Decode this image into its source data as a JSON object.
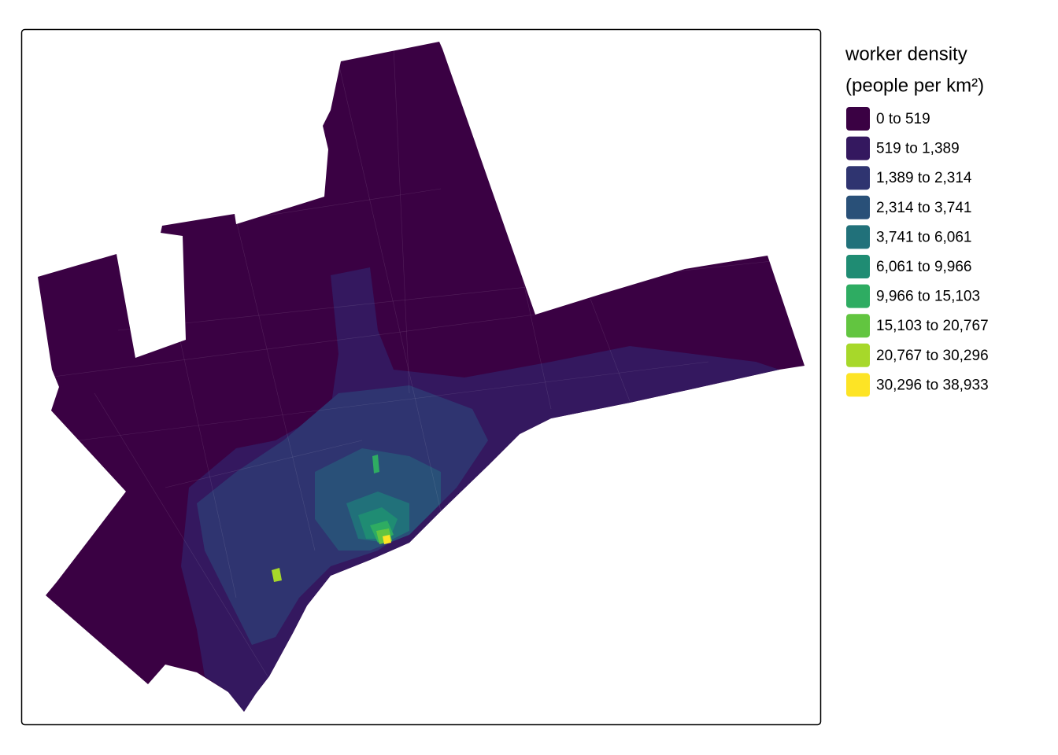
{
  "legend": {
    "title": [
      "worker density",
      "(people per km²)"
    ],
    "items": [
      {
        "label": "0 to 519",
        "color": "#3a0143"
      },
      {
        "label": "519 to 1,389",
        "color": "#34185f"
      },
      {
        "label": "1,389 to 2,314",
        "color": "#2f3470"
      },
      {
        "label": "2,314 to 3,741",
        "color": "#295078"
      },
      {
        "label": "3,741 to 6,061",
        "color": "#21717a"
      },
      {
        "label": "6,061 to 9,966",
        "color": "#1f8c73"
      },
      {
        "label": "9,966 to 15,103",
        "color": "#2eac62"
      },
      {
        "label": "15,103 to 20,767",
        "color": "#62c540"
      },
      {
        "label": "20,767 to 30,296",
        "color": "#a7d82a"
      },
      {
        "label": "30,296 to 38,933",
        "color": "#fde425"
      }
    ]
  }
}
